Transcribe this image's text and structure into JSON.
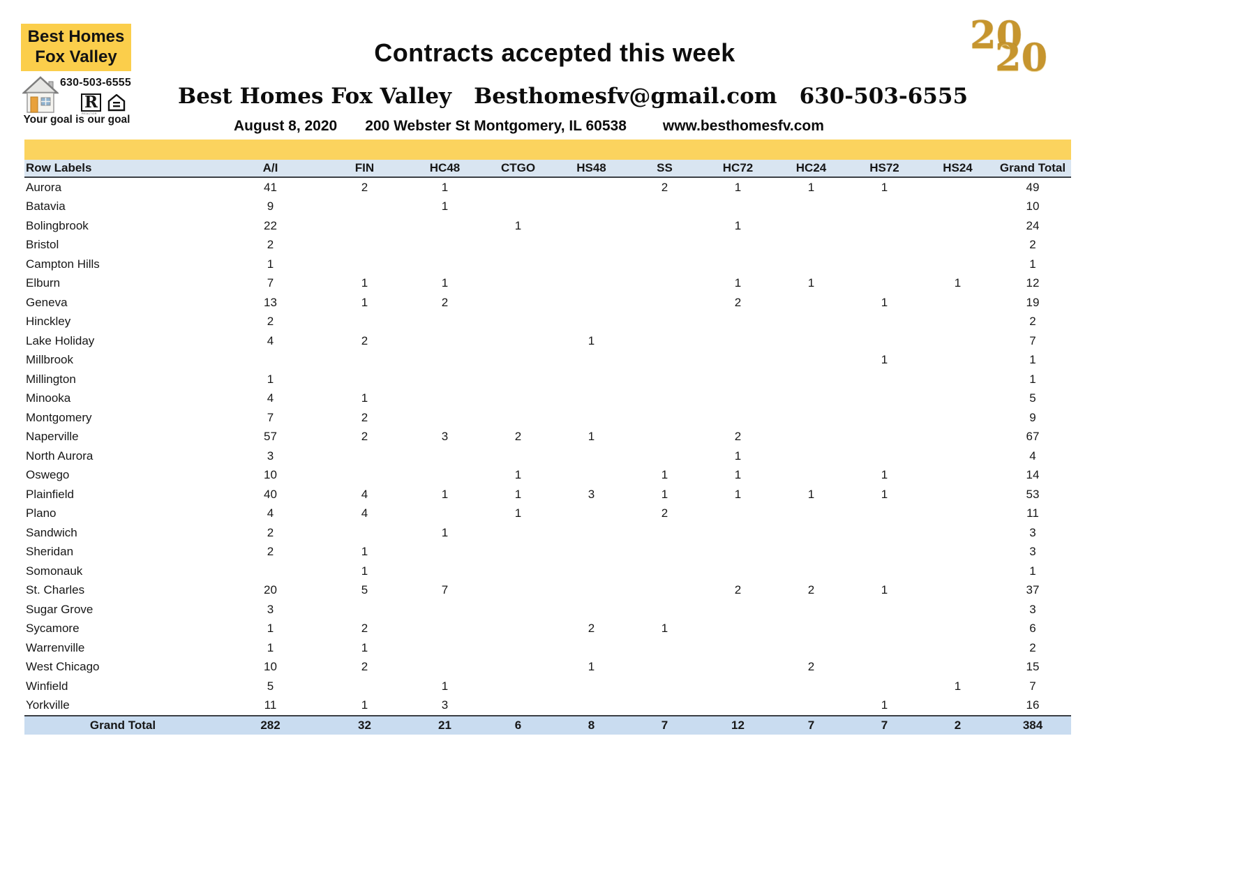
{
  "branding": {
    "logo_line1": "Best Homes",
    "logo_line2": "Fox Valley",
    "logo_phone": "630-503-6555",
    "tagline": "Your goal is our goal",
    "year_top": "20",
    "year_bottom": "20",
    "logo_bg_color": "#FBCE4B",
    "gold_color": "#C6952E",
    "realtor_r": "R",
    "realtor_sub": "REALTOR"
  },
  "header": {
    "title": "Contracts accepted this week",
    "company": "Best Homes Fox Valley",
    "email": "Besthomesfv@gmail.com",
    "phone": "630-503-6555",
    "date": "August 8, 2020",
    "address": "200 Webster St Montgomery, IL 60538",
    "website": "www.besthomesfv.com"
  },
  "table": {
    "band_color": "#FBD35E",
    "header_bg": "#D9E5F1",
    "total_bg": "#C9DCF0",
    "columns": [
      "Row Labels",
      "A/I",
      "FIN",
      "HC48",
      "CTGO",
      "HS48",
      "SS",
      "HC72",
      "HC24",
      "HS72",
      "HS24",
      "Grand Total"
    ],
    "rows": [
      {
        "label": "Aurora",
        "values": [
          "41",
          "2",
          "1",
          "",
          "",
          "2",
          "1",
          "1",
          "1",
          "",
          "49"
        ]
      },
      {
        "label": "Batavia",
        "values": [
          "9",
          "",
          "1",
          "",
          "",
          "",
          "",
          "",
          "",
          "",
          "10"
        ]
      },
      {
        "label": "Bolingbrook",
        "values": [
          "22",
          "",
          "",
          "1",
          "",
          "",
          "1",
          "",
          "",
          "",
          "24"
        ]
      },
      {
        "label": "Bristol",
        "values": [
          "2",
          "",
          "",
          "",
          "",
          "",
          "",
          "",
          "",
          "",
          "2"
        ]
      },
      {
        "label": "Campton Hills",
        "values": [
          "1",
          "",
          "",
          "",
          "",
          "",
          "",
          "",
          "",
          "",
          "1"
        ]
      },
      {
        "label": "Elburn",
        "values": [
          "7",
          "1",
          "1",
          "",
          "",
          "",
          "1",
          "1",
          "",
          "1",
          "12"
        ]
      },
      {
        "label": "Geneva",
        "values": [
          "13",
          "1",
          "2",
          "",
          "",
          "",
          "2",
          "",
          "1",
          "",
          "19"
        ]
      },
      {
        "label": "Hinckley",
        "values": [
          "2",
          "",
          "",
          "",
          "",
          "",
          "",
          "",
          "",
          "",
          "2"
        ]
      },
      {
        "label": "Lake Holiday",
        "values": [
          "4",
          "2",
          "",
          "",
          "1",
          "",
          "",
          "",
          "",
          "",
          "7"
        ]
      },
      {
        "label": "Millbrook",
        "values": [
          "",
          "",
          "",
          "",
          "",
          "",
          "",
          "",
          "1",
          "",
          "1"
        ]
      },
      {
        "label": "Millington",
        "values": [
          "1",
          "",
          "",
          "",
          "",
          "",
          "",
          "",
          "",
          "",
          "1"
        ]
      },
      {
        "label": "Minooka",
        "values": [
          "4",
          "1",
          "",
          "",
          "",
          "",
          "",
          "",
          "",
          "",
          "5"
        ]
      },
      {
        "label": "Montgomery",
        "values": [
          "7",
          "2",
          "",
          "",
          "",
          "",
          "",
          "",
          "",
          "",
          "9"
        ]
      },
      {
        "label": "Naperville",
        "values": [
          "57",
          "2",
          "3",
          "2",
          "1",
          "",
          "2",
          "",
          "",
          "",
          "67"
        ]
      },
      {
        "label": "North Aurora",
        "values": [
          "3",
          "",
          "",
          "",
          "",
          "",
          "1",
          "",
          "",
          "",
          "4"
        ]
      },
      {
        "label": "Oswego",
        "values": [
          "10",
          "",
          "",
          "1",
          "",
          "1",
          "1",
          "",
          "1",
          "",
          "14"
        ]
      },
      {
        "label": "Plainfield",
        "values": [
          "40",
          "4",
          "1",
          "1",
          "3",
          "1",
          "1",
          "1",
          "1",
          "",
          "53"
        ]
      },
      {
        "label": "Plano",
        "values": [
          "4",
          "4",
          "",
          "1",
          "",
          "2",
          "",
          "",
          "",
          "",
          "11"
        ]
      },
      {
        "label": "Sandwich",
        "values": [
          "2",
          "",
          "1",
          "",
          "",
          "",
          "",
          "",
          "",
          "",
          "3"
        ]
      },
      {
        "label": "Sheridan",
        "values": [
          "2",
          "1",
          "",
          "",
          "",
          "",
          "",
          "",
          "",
          "",
          "3"
        ]
      },
      {
        "label": "Somonauk",
        "values": [
          "",
          "1",
          "",
          "",
          "",
          "",
          "",
          "",
          "",
          "",
          "1"
        ]
      },
      {
        "label": "St. Charles",
        "values": [
          "20",
          "5",
          "7",
          "",
          "",
          "",
          "2",
          "2",
          "1",
          "",
          "37"
        ]
      },
      {
        "label": "Sugar Grove",
        "values": [
          "3",
          "",
          "",
          "",
          "",
          "",
          "",
          "",
          "",
          "",
          "3"
        ]
      },
      {
        "label": "Sycamore",
        "values": [
          "1",
          "2",
          "",
          "",
          "2",
          "1",
          "",
          "",
          "",
          "",
          "6"
        ]
      },
      {
        "label": "Warrenville",
        "values": [
          "1",
          "1",
          "",
          "",
          "",
          "",
          "",
          "",
          "",
          "",
          "2"
        ]
      },
      {
        "label": "West Chicago",
        "values": [
          "10",
          "2",
          "",
          "",
          "1",
          "",
          "",
          "2",
          "",
          "",
          "15"
        ]
      },
      {
        "label": "Winfield",
        "values": [
          "5",
          "",
          "1",
          "",
          "",
          "",
          "",
          "",
          "",
          "1",
          "7"
        ]
      },
      {
        "label": "Yorkville",
        "values": [
          "11",
          "1",
          "3",
          "",
          "",
          "",
          "",
          "",
          "1",
          "",
          "16"
        ]
      }
    ],
    "grand_total": {
      "label": "Grand Total",
      "values": [
        "282",
        "32",
        "21",
        "6",
        "8",
        "7",
        "12",
        "7",
        "7",
        "2",
        "384"
      ]
    }
  }
}
